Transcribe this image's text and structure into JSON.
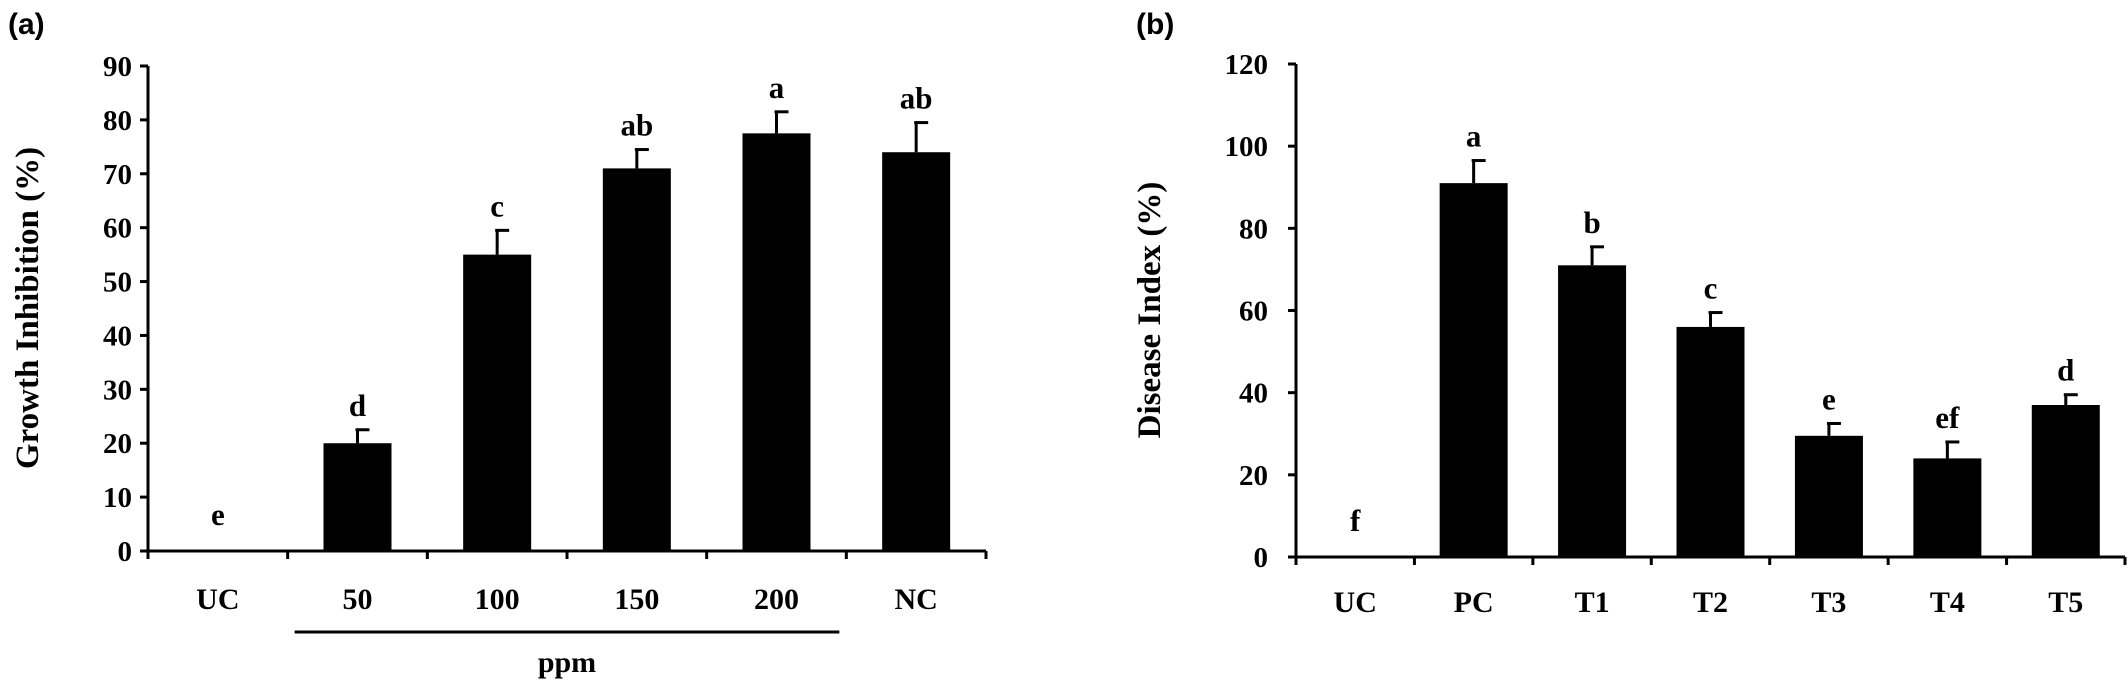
{
  "chart_data": [
    {
      "panel_label": "(a)",
      "type": "bar",
      "categories": [
        "UC",
        "50",
        "100",
        "150",
        "200",
        "NC"
      ],
      "values": [
        0,
        20,
        55,
        71,
        77.5,
        74
      ],
      "errors": [
        0,
        2.5,
        4.5,
        3.5,
        4,
        5.5
      ],
      "significance": [
        "e",
        "d",
        "c",
        "ab",
        "a",
        "ab"
      ],
      "group_label": "ppm",
      "group_span": [
        1,
        4
      ],
      "xlabel": "",
      "ylabel": "Growth Inhibition (%)",
      "ylim": [
        0,
        90
      ],
      "yticks": [
        0,
        10,
        20,
        30,
        40,
        50,
        60,
        70,
        80,
        90
      ],
      "grid": false
    },
    {
      "panel_label": "(b)",
      "type": "bar",
      "categories": [
        "UC",
        "PC",
        "T1",
        "T2",
        "T3",
        "T4",
        "T5"
      ],
      "values": [
        0,
        91,
        71,
        56,
        29.5,
        24,
        37
      ],
      "errors": [
        0,
        5.5,
        4.5,
        3.5,
        3,
        4,
        2.5
      ],
      "significance": [
        "f",
        "a",
        "b",
        "c",
        "e",
        "ef",
        "d"
      ],
      "xlabel": "",
      "ylabel": "Disease Index (%)",
      "ylim": [
        0,
        120
      ],
      "yticks": [
        0,
        20,
        40,
        60,
        80,
        100,
        120
      ],
      "grid": false
    }
  ]
}
